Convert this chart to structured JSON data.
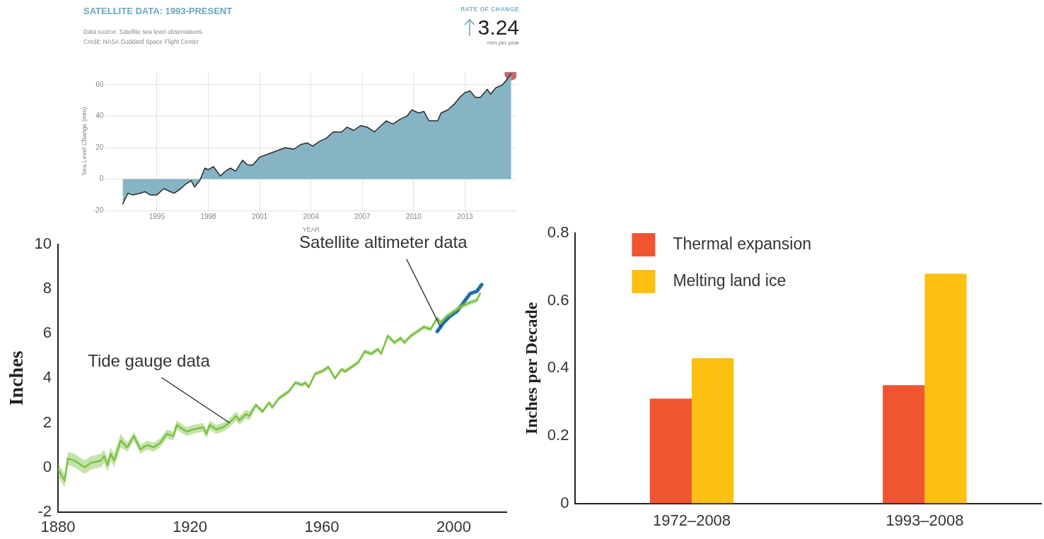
{
  "chart_data": [
    {
      "type": "area",
      "title": "SATELLITE DATA: 1993-PRESENT",
      "subtitle": "Data source: Satellite sea level observations.\nCredit: NASA Goddard Space Flight Center",
      "annotations": [
        "RATE OF CHANGE",
        "3.24",
        "mm per year"
      ],
      "xlabel": "YEAR",
      "ylabel": "Sea Level Change (mm)",
      "xlim": [
        1992,
        2016
      ],
      "ylim": [
        -20,
        68
      ],
      "xticks": [
        1995,
        1998,
        2001,
        2004,
        2007,
        2010,
        2013
      ],
      "yticks": [
        -20,
        0,
        20,
        40,
        60
      ],
      "grid": true,
      "series": [
        {
          "type": "area",
          "color": "#86b4c5",
          "x": [
            1993.0,
            1993.3,
            1993.6,
            1994.0,
            1994.3,
            1994.6,
            1995.0,
            1995.4,
            1995.8,
            1996.0,
            1996.4,
            1996.7,
            1997.0,
            1997.2,
            1997.5,
            1997.8,
            1998.0,
            1998.3,
            1998.7,
            1999.0,
            1999.3,
            1999.6,
            2000.0,
            2000.3,
            2000.6,
            2001.0,
            2001.5,
            2002.0,
            2002.5,
            2003.0,
            2003.4,
            2003.8,
            2004.1,
            2004.5,
            2004.9,
            2005.3,
            2005.8,
            2006.1,
            2006.5,
            2006.9,
            2007.3,
            2007.7,
            2008.0,
            2008.4,
            2008.8,
            2009.2,
            2009.6,
            2009.9,
            2010.3,
            2010.6,
            2010.9,
            2011.4,
            2011.6,
            2012.0,
            2012.4,
            2012.7,
            2013.0,
            2013.3,
            2013.6,
            2013.9,
            2014.3,
            2014.5,
            2014.8,
            2015.2,
            2015.5,
            2015.7
          ],
          "values": [
            -16,
            -9,
            -10,
            -9,
            -8,
            -10,
            -10,
            -6,
            -8,
            -9,
            -6,
            -3,
            -1,
            -5,
            -1,
            7,
            6,
            8,
            2,
            5,
            7,
            5,
            12,
            9,
            9,
            14,
            16,
            18,
            20,
            19,
            22,
            23,
            21,
            24,
            26,
            30,
            30,
            33,
            31,
            34,
            33,
            30,
            33,
            37,
            35,
            38,
            40,
            44,
            42,
            43,
            37,
            37,
            42,
            44,
            48,
            52,
            55,
            56,
            52,
            52,
            57,
            54,
            58,
            60,
            64,
            67
          ]
        },
        {
          "type": "scatter",
          "color": "#c0504d",
          "marker": "circle",
          "x": [
            2015.7
          ],
          "values": [
            67
          ]
        }
      ]
    },
    {
      "type": "line",
      "ylabel": "Inches",
      "xlim": [
        1880,
        2016
      ],
      "ylim": [
        -2,
        10
      ],
      "xticks": [
        1880,
        1920,
        1960,
        2000
      ],
      "yticks": [
        -2,
        0,
        2,
        4,
        6,
        8,
        10
      ],
      "annotations": [
        {
          "text": "Tide gauge data",
          "x": 1932,
          "y": 2.0
        },
        {
          "text": "Satellite altimeter data",
          "x": 1996,
          "y": 6.3
        }
      ],
      "series": [
        {
          "color": "#7dc242",
          "x": [
            1880,
            1882,
            1883,
            1885,
            1888,
            1890,
            1893,
            1894,
            1895,
            1896,
            1897,
            1899,
            1901,
            1903,
            1905,
            1907,
            1909,
            1911,
            1913,
            1915,
            1916,
            1919,
            1921,
            1924,
            1925,
            1926,
            1928,
            1930,
            1932,
            1934,
            1935,
            1937,
            1938,
            1940,
            1942,
            1944,
            1945,
            1947,
            1950,
            1952,
            1954,
            1955,
            1956,
            1958,
            1960,
            1962,
            1964,
            1966,
            1967,
            1969,
            1971,
            1973,
            1975,
            1977,
            1978,
            1980,
            1982,
            1984,
            1985,
            1987,
            1989,
            1991,
            1993,
            1995,
            1996,
            1998,
            2000,
            2002,
            2005,
            2007,
            2008
          ],
          "values": [
            -0.1,
            -0.6,
            0.4,
            0.3,
            0.0,
            0.2,
            0.3,
            0.5,
            0.1,
            0.6,
            0.3,
            1.2,
            0.9,
            1.4,
            0.8,
            1.0,
            0.9,
            1.1,
            1.5,
            1.4,
            1.9,
            1.6,
            1.7,
            1.8,
            1.5,
            1.9,
            1.7,
            1.8,
            2.0,
            2.3,
            2.1,
            2.4,
            2.3,
            2.8,
            2.5,
            2.9,
            2.7,
            3.1,
            3.4,
            3.8,
            3.7,
            3.8,
            3.6,
            4.2,
            4.3,
            4.5,
            4.0,
            4.4,
            4.3,
            4.5,
            4.7,
            5.2,
            5.1,
            5.3,
            5.1,
            5.9,
            5.6,
            5.8,
            5.6,
            5.9,
            6.1,
            6.3,
            6.2,
            6.7,
            6.5,
            6.8,
            7.0,
            7.2,
            7.4,
            7.5,
            7.8
          ],
          "lower": [
            -0.4,
            -0.9,
            0.1,
            0.0,
            -0.3,
            -0.1,
            0.0,
            0.2,
            -0.2,
            0.3,
            0.0,
            0.9,
            0.7,
            1.2,
            0.6,
            0.8,
            0.7,
            0.9,
            1.3,
            1.2,
            1.7,
            1.4,
            1.5,
            1.6,
            1.3,
            1.7,
            1.5,
            1.6,
            1.8,
            2.1,
            1.9,
            2.2,
            2.1,
            2.7,
            2.4,
            2.8,
            2.6,
            3.0,
            3.3,
            3.7,
            3.6,
            3.7,
            3.5,
            4.1,
            4.2,
            4.4,
            3.9,
            4.3,
            4.2,
            4.4,
            4.6,
            5.1,
            5.0,
            5.2,
            5.0,
            5.8,
            5.5,
            5.7,
            5.5,
            5.8,
            6.0,
            6.2,
            6.1,
            6.6,
            6.4,
            6.7,
            6.9,
            7.1,
            7.3,
            7.4,
            7.7
          ],
          "upper": [
            0.2,
            -0.3,
            0.7,
            0.6,
            0.3,
            0.5,
            0.6,
            0.8,
            0.4,
            0.9,
            0.6,
            1.5,
            1.1,
            1.6,
            1.0,
            1.2,
            1.1,
            1.3,
            1.7,
            1.6,
            2.1,
            1.8,
            1.9,
            2.0,
            1.7,
            2.1,
            1.9,
            2.0,
            2.2,
            2.5,
            2.3,
            2.6,
            2.5,
            2.9,
            2.6,
            3.0,
            2.8,
            3.2,
            3.5,
            3.9,
            3.8,
            3.9,
            3.7,
            4.3,
            4.4,
            4.6,
            4.1,
            4.5,
            4.4,
            4.6,
            4.8,
            5.3,
            5.2,
            5.4,
            5.2,
            6.0,
            5.7,
            5.9,
            5.7,
            6.0,
            6.2,
            6.4,
            6.3,
            6.8,
            6.6,
            6.9,
            7.1,
            7.3,
            7.5,
            7.6,
            7.9
          ]
        },
        {
          "color": "#1f6fa6",
          "x": [
            1995,
            1997,
            1999,
            2001,
            2003,
            2005,
            2007,
            2008.5
          ],
          "values": [
            6.1,
            6.5,
            6.8,
            7.0,
            7.4,
            7.8,
            7.9,
            8.2
          ]
        }
      ]
    },
    {
      "type": "bar",
      "ylabel": "Inches per Decade",
      "categories": [
        "1972–2008",
        "1993–2008"
      ],
      "ylim": [
        0,
        0.8
      ],
      "yticks": [
        0,
        0.2,
        0.4,
        0.6,
        0.8
      ],
      "legend": "top left",
      "series": [
        {
          "name": "Thermal expansion",
          "color": "#f05532",
          "values": [
            0.31,
            0.35
          ]
        },
        {
          "name": "Melting land ice",
          "color": "#fdc010",
          "values": [
            0.43,
            0.68
          ]
        }
      ]
    }
  ]
}
